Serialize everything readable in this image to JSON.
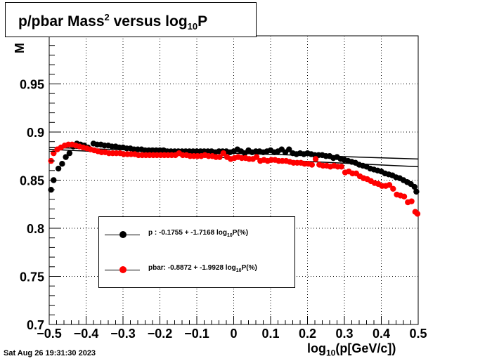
{
  "title": {
    "prefix": "p/pbar Mass",
    "sup": "2",
    "middle": " versus log",
    "sub": "10",
    "suffix": "P"
  },
  "ylabel_fragment": "M",
  "timestamp": "Sat Aug 26 19:31:30 2023",
  "xaxis_title": {
    "prefix": "log",
    "sub": "10",
    "suffix": "(p[GeV/c])"
  },
  "legend": [
    {
      "prefix": "p  : -0.1755 + -1.7168 log",
      "sub": "10",
      "suffix": "P(%)",
      "color": "#000000"
    },
    {
      "prefix": "pbar: -0.8872 + -1.9928 log",
      "sub": "10",
      "suffix": "P(%)",
      "color": "#ff0000"
    }
  ],
  "chart_data": {
    "type": "scatter",
    "xlim": [
      -0.5,
      0.5
    ],
    "ylim": [
      0.7,
      1.0
    ],
    "grid": true,
    "xticks": [
      -0.5,
      -0.4,
      -0.3,
      -0.2,
      -0.1,
      0,
      0.1,
      0.2,
      0.3,
      0.4,
      0.5
    ],
    "xtick_labels": [
      "−0.5",
      "−0.4",
      "−0.3",
      "−0.2",
      "−0.1",
      "0",
      "0.1",
      "0.2",
      "0.3",
      "0.4",
      "0.5"
    ],
    "yticks": [
      0.7,
      0.75,
      0.8,
      0.85,
      0.9,
      0.95
    ],
    "ytick_labels": [
      "0.7",
      "0.75",
      "0.8",
      "0.85",
      "0.9",
      "0.95"
    ],
    "series": [
      {
        "name": "p",
        "color": "#000000",
        "points": [
          [
            -0.495,
            0.84
          ],
          [
            -0.488,
            0.85
          ],
          [
            -0.475,
            0.862
          ],
          [
            -0.465,
            0.867
          ],
          [
            -0.455,
            0.874
          ],
          [
            -0.445,
            0.878
          ],
          [
            -0.435,
            0.885
          ],
          [
            -0.425,
            0.888
          ],
          [
            -0.415,
            0.887
          ],
          [
            -0.405,
            0.886
          ],
          [
            -0.395,
            0.884
          ],
          [
            -0.38,
            0.888
          ],
          [
            -0.37,
            0.887
          ],
          [
            -0.36,
            0.887
          ],
          [
            -0.35,
            0.886
          ],
          [
            -0.34,
            0.886
          ],
          [
            -0.33,
            0.885
          ],
          [
            -0.32,
            0.885
          ],
          [
            -0.31,
            0.884
          ],
          [
            -0.3,
            0.884
          ],
          [
            -0.29,
            0.883
          ],
          [
            -0.28,
            0.883
          ],
          [
            -0.27,
            0.882
          ],
          [
            -0.26,
            0.882
          ],
          [
            -0.25,
            0.882
          ],
          [
            -0.24,
            0.881
          ],
          [
            -0.23,
            0.881
          ],
          [
            -0.22,
            0.881
          ],
          [
            -0.21,
            0.881
          ],
          [
            -0.2,
            0.881
          ],
          [
            -0.19,
            0.881
          ],
          [
            -0.18,
            0.88
          ],
          [
            -0.17,
            0.88
          ],
          [
            -0.16,
            0.88
          ],
          [
            -0.15,
            0.88
          ],
          [
            -0.14,
            0.88
          ],
          [
            -0.13,
            0.88
          ],
          [
            -0.12,
            0.88
          ],
          [
            -0.11,
            0.88
          ],
          [
            -0.1,
            0.88
          ],
          [
            -0.09,
            0.88
          ],
          [
            -0.08,
            0.88
          ],
          [
            -0.07,
            0.88
          ],
          [
            -0.06,
            0.88
          ],
          [
            -0.05,
            0.879
          ],
          [
            -0.04,
            0.88
          ],
          [
            -0.03,
            0.88
          ],
          [
            -0.02,
            0.88
          ],
          [
            -0.01,
            0.879
          ],
          [
            0.0,
            0.88
          ],
          [
            0.01,
            0.882
          ],
          [
            0.02,
            0.88
          ],
          [
            0.03,
            0.878
          ],
          [
            0.04,
            0.881
          ],
          [
            0.05,
            0.879
          ],
          [
            0.06,
            0.88
          ],
          [
            0.07,
            0.88
          ],
          [
            0.08,
            0.879
          ],
          [
            0.09,
            0.88
          ],
          [
            0.1,
            0.881
          ],
          [
            0.11,
            0.879
          ],
          [
            0.12,
            0.88
          ],
          [
            0.13,
            0.882
          ],
          [
            0.14,
            0.879
          ],
          [
            0.15,
            0.882
          ],
          [
            0.16,
            0.878
          ],
          [
            0.17,
            0.877
          ],
          [
            0.18,
            0.878
          ],
          [
            0.19,
            0.877
          ],
          [
            0.2,
            0.878
          ],
          [
            0.21,
            0.877
          ],
          [
            0.22,
            0.876
          ],
          [
            0.23,
            0.876
          ],
          [
            0.24,
            0.876
          ],
          [
            0.25,
            0.875
          ],
          [
            0.26,
            0.875
          ],
          [
            0.27,
            0.873
          ],
          [
            0.28,
            0.874
          ],
          [
            0.29,
            0.872
          ],
          [
            0.3,
            0.871
          ],
          [
            0.31,
            0.87
          ],
          [
            0.32,
            0.869
          ],
          [
            0.33,
            0.868
          ],
          [
            0.34,
            0.866
          ],
          [
            0.35,
            0.865
          ],
          [
            0.36,
            0.864
          ],
          [
            0.37,
            0.862
          ],
          [
            0.38,
            0.861
          ],
          [
            0.39,
            0.86
          ],
          [
            0.4,
            0.859
          ],
          [
            0.41,
            0.857
          ],
          [
            0.42,
            0.856
          ],
          [
            0.43,
            0.855
          ],
          [
            0.44,
            0.853
          ],
          [
            0.45,
            0.852
          ],
          [
            0.46,
            0.85
          ],
          [
            0.47,
            0.848
          ],
          [
            0.48,
            0.846
          ],
          [
            0.49,
            0.843
          ],
          [
            0.495,
            0.838
          ]
        ],
        "fit": [
          [
            -0.5,
            0.884
          ],
          [
            0.5,
            0.872
          ]
        ]
      },
      {
        "name": "pbar",
        "color": "#ff0000",
        "points": [
          [
            -0.495,
            0.87
          ],
          [
            -0.488,
            0.878
          ],
          [
            -0.478,
            0.882
          ],
          [
            -0.468,
            0.884
          ],
          [
            -0.458,
            0.886
          ],
          [
            -0.448,
            0.887
          ],
          [
            -0.438,
            0.887
          ],
          [
            -0.428,
            0.886
          ],
          [
            -0.418,
            0.885
          ],
          [
            -0.408,
            0.884
          ],
          [
            -0.398,
            0.883
          ],
          [
            -0.388,
            0.882
          ],
          [
            -0.378,
            0.881
          ],
          [
            -0.368,
            0.88
          ],
          [
            -0.358,
            0.879
          ],
          [
            -0.348,
            0.879
          ],
          [
            -0.338,
            0.878
          ],
          [
            -0.328,
            0.878
          ],
          [
            -0.318,
            0.878
          ],
          [
            -0.308,
            0.878
          ],
          [
            -0.298,
            0.877
          ],
          [
            -0.288,
            0.877
          ],
          [
            -0.278,
            0.877
          ],
          [
            -0.268,
            0.877
          ],
          [
            -0.258,
            0.876
          ],
          [
            -0.248,
            0.876
          ],
          [
            -0.238,
            0.876
          ],
          [
            -0.228,
            0.876
          ],
          [
            -0.218,
            0.876
          ],
          [
            -0.208,
            0.876
          ],
          [
            -0.198,
            0.876
          ],
          [
            -0.188,
            0.876
          ],
          [
            -0.178,
            0.876
          ],
          [
            -0.168,
            0.876
          ],
          [
            -0.158,
            0.876
          ],
          [
            -0.148,
            0.878
          ],
          [
            -0.138,
            0.876
          ],
          [
            -0.128,
            0.876
          ],
          [
            -0.118,
            0.875
          ],
          [
            -0.108,
            0.875
          ],
          [
            -0.098,
            0.875
          ],
          [
            -0.088,
            0.875
          ],
          [
            -0.078,
            0.876
          ],
          [
            -0.068,
            0.875
          ],
          [
            -0.058,
            0.875
          ],
          [
            -0.048,
            0.874
          ],
          [
            -0.038,
            0.874
          ],
          [
            -0.028,
            0.878
          ],
          [
            -0.018,
            0.874
          ],
          [
            -0.008,
            0.872
          ],
          [
            0.002,
            0.873
          ],
          [
            0.012,
            0.874
          ],
          [
            0.022,
            0.873
          ],
          [
            0.032,
            0.873
          ],
          [
            0.042,
            0.872
          ],
          [
            0.052,
            0.872
          ],
          [
            0.062,
            0.874
          ],
          [
            0.072,
            0.87
          ],
          [
            0.082,
            0.871
          ],
          [
            0.092,
            0.87
          ],
          [
            0.102,
            0.871
          ],
          [
            0.112,
            0.871
          ],
          [
            0.122,
            0.87
          ],
          [
            0.132,
            0.87
          ],
          [
            0.142,
            0.87
          ],
          [
            0.152,
            0.869
          ],
          [
            0.162,
            0.868
          ],
          [
            0.172,
            0.868
          ],
          [
            0.182,
            0.868
          ],
          [
            0.192,
            0.867
          ],
          [
            0.202,
            0.867
          ],
          [
            0.212,
            0.866
          ],
          [
            0.222,
            0.872
          ],
          [
            0.232,
            0.866
          ],
          [
            0.242,
            0.865
          ],
          [
            0.252,
            0.865
          ],
          [
            0.262,
            0.864
          ],
          [
            0.272,
            0.865
          ],
          [
            0.282,
            0.864
          ],
          [
            0.292,
            0.864
          ],
          [
            0.302,
            0.858
          ],
          [
            0.312,
            0.859
          ],
          [
            0.322,
            0.857
          ],
          [
            0.332,
            0.857
          ],
          [
            0.342,
            0.854
          ],
          [
            0.352,
            0.852
          ],
          [
            0.362,
            0.851
          ],
          [
            0.372,
            0.849
          ],
          [
            0.382,
            0.847
          ],
          [
            0.392,
            0.846
          ],
          [
            0.402,
            0.844
          ],
          [
            0.412,
            0.844
          ],
          [
            0.422,
            0.845
          ],
          [
            0.432,
            0.841
          ],
          [
            0.442,
            0.835
          ],
          [
            0.452,
            0.834
          ],
          [
            0.462,
            0.833
          ],
          [
            0.472,
            0.827
          ],
          [
            0.482,
            0.828
          ],
          [
            0.492,
            0.817
          ],
          [
            0.498,
            0.815
          ]
        ],
        "fit": [
          [
            -0.5,
            0.882
          ],
          [
            0.5,
            0.864
          ]
        ]
      }
    ]
  }
}
